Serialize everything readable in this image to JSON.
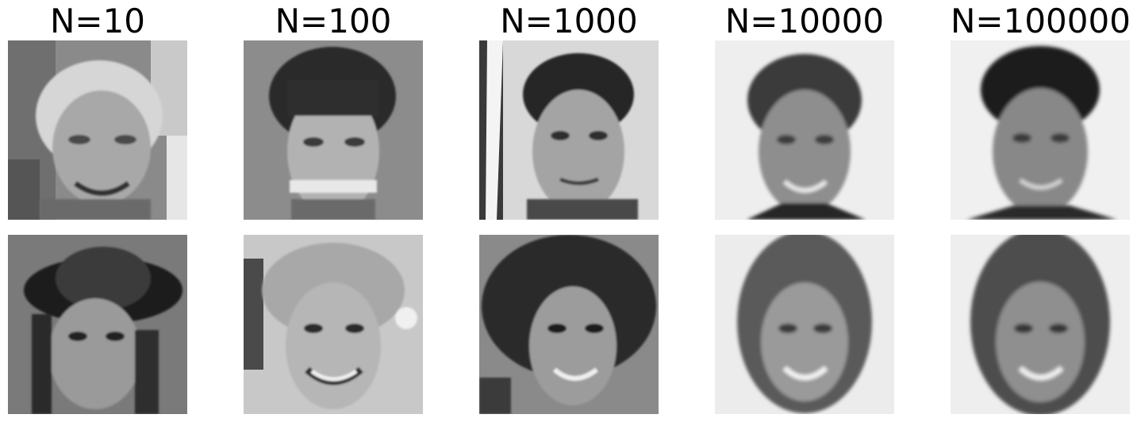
{
  "columns": [
    {
      "title": "N=10"
    },
    {
      "title": "N=100"
    },
    {
      "title": "N=1000"
    },
    {
      "title": "N=10000"
    },
    {
      "title": "N=100000"
    }
  ],
  "rows": 2
}
